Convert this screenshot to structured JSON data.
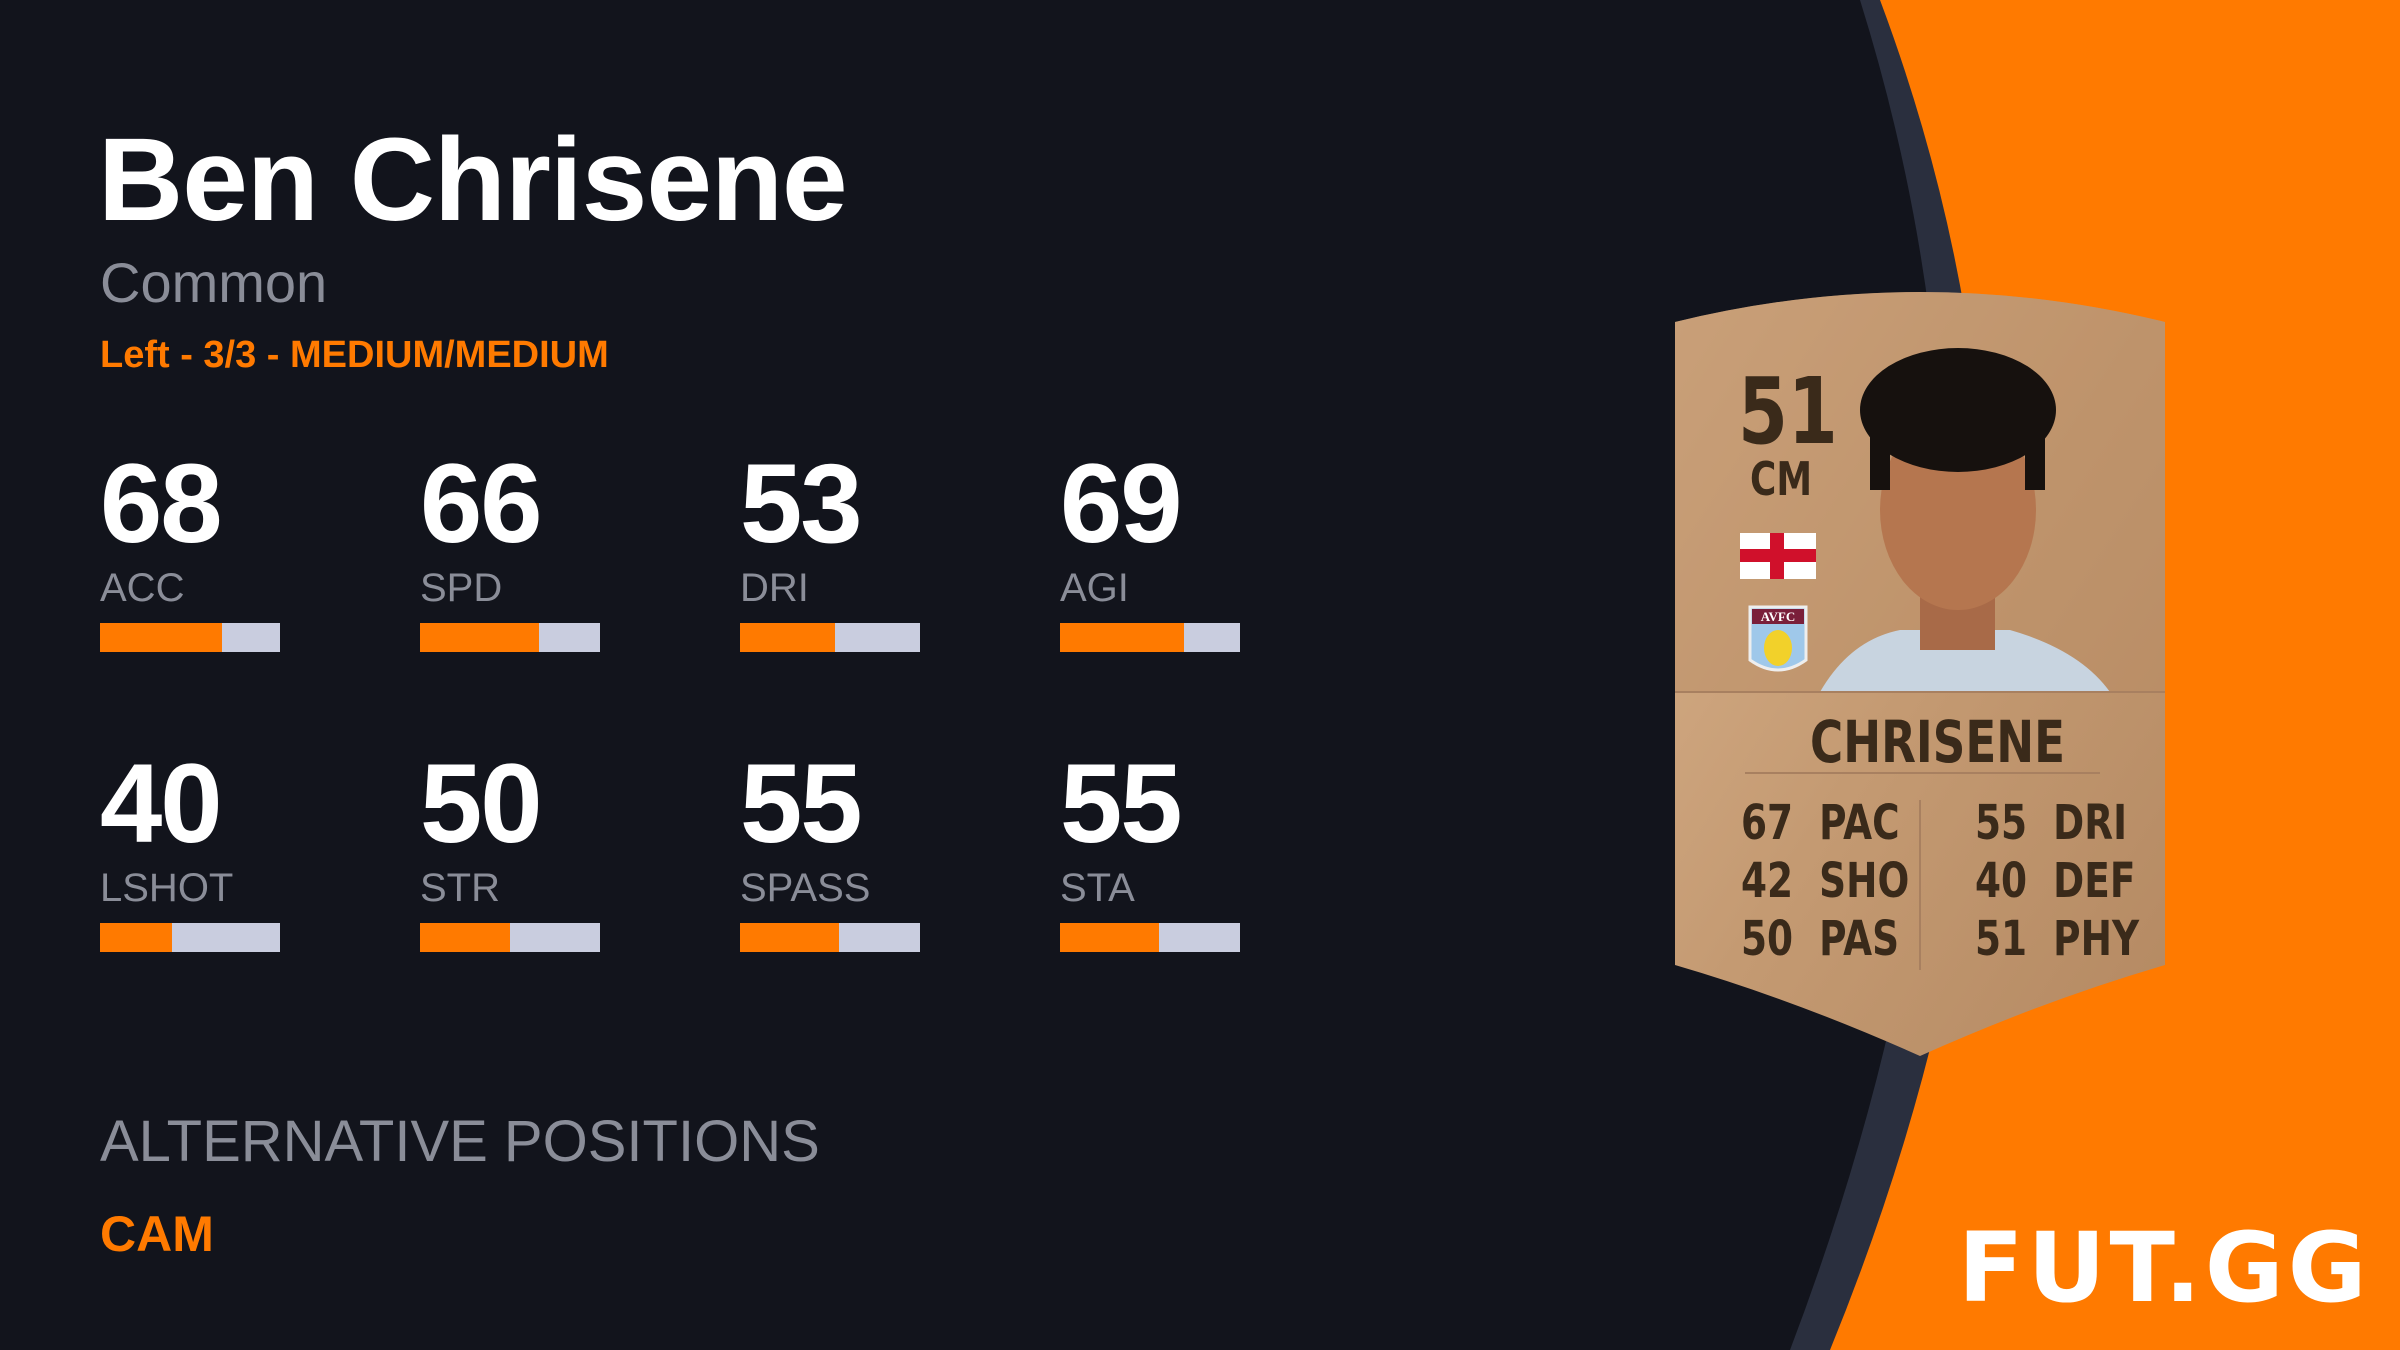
{
  "player": {
    "name": "Ben Chrisene",
    "rarity": "Common",
    "meta": "Left - 3/3 - MEDIUM/MEDIUM"
  },
  "stats": [
    {
      "value": "68",
      "label": "ACC",
      "percent": 68
    },
    {
      "value": "66",
      "label": "SPD",
      "percent": 66
    },
    {
      "value": "53",
      "label": "DRI",
      "percent": 53
    },
    {
      "value": "69",
      "label": "AGI",
      "percent": 69
    },
    {
      "value": "40",
      "label": "LSHOT",
      "percent": 40
    },
    {
      "value": "50",
      "label": "STR",
      "percent": 50
    },
    {
      "value": "55",
      "label": "SPASS",
      "percent": 55
    },
    {
      "value": "55",
      "label": "STA",
      "percent": 55
    }
  ],
  "alternative_positions": {
    "title": "ALTERNATIVE POSITIONS",
    "value": "CAM"
  },
  "card": {
    "rating": "51",
    "position": "CM",
    "name": "CHRISENE",
    "nation_icon": "england-flag",
    "club_badge": "AVFC",
    "left_stats": [
      {
        "v": "67",
        "l": "PAC"
      },
      {
        "v": "42",
        "l": "SHO"
      },
      {
        "v": "50",
        "l": "PAS"
      }
    ],
    "right_stats": [
      {
        "v": "55",
        "l": "DRI"
      },
      {
        "v": "40",
        "l": "DEF"
      },
      {
        "v": "51",
        "l": "PHY"
      }
    ]
  },
  "logo": "FUT.GG",
  "colors": {
    "accent": "#ff7a00",
    "background": "#12141c",
    "bar_track": "#c9cddf",
    "card": "#c9a07a"
  }
}
